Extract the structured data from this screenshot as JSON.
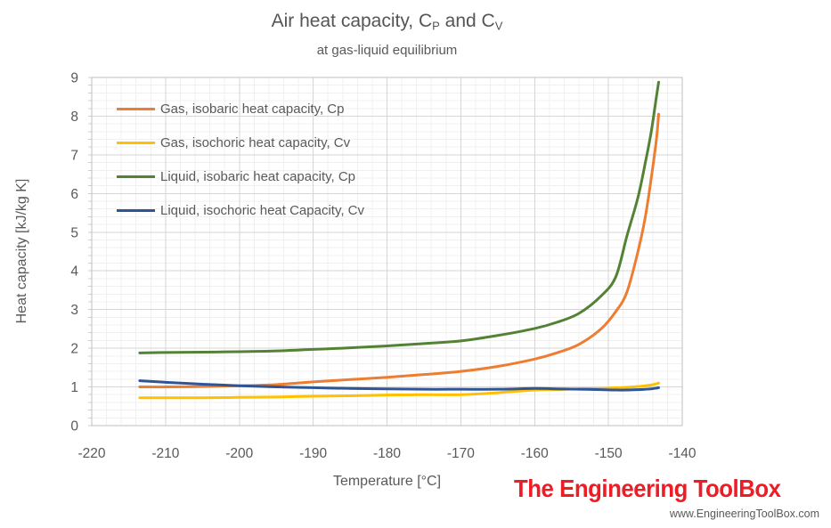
{
  "title": {
    "text1": "Air heat capacity, C",
    "sub1": "P",
    "text2": " and C",
    "sub2": "V"
  },
  "subtitle": "at gas-liquid equilibrium",
  "axes": {
    "x_label": "Temperature [°C]",
    "y_label": "Heat capacity  [kJ/kg K]"
  },
  "branding": {
    "logo_text": "The Engineering ToolBox",
    "logo_color": "#EE1C25",
    "website": "www.EngineeringToolBox.com"
  },
  "chart_data": {
    "type": "line",
    "title": "Air heat capacity, Cp and Cv",
    "subtitle": "at gas-liquid equilibrium",
    "xlabel": "Temperature [°C]",
    "ylabel": "Heat capacity [kJ/kg K]",
    "xlim": [
      -220,
      -140
    ],
    "ylim": [
      0,
      9
    ],
    "x_ticks": [
      -220,
      -210,
      -200,
      -190,
      -180,
      -170,
      -160,
      -150,
      -140
    ],
    "y_ticks": [
      0,
      1,
      2,
      3,
      4,
      5,
      6,
      7,
      8,
      9
    ],
    "grid": {
      "major": true,
      "minor": true,
      "x_major_step": 10,
      "x_minor_step": 2,
      "y_major_step": 1,
      "y_minor_step": 0.2
    },
    "legend_position": "inside-top-left",
    "x": [
      -213.5,
      -210,
      -205,
      -200,
      -195,
      -190,
      -185,
      -180,
      -175,
      -170,
      -165,
      -160,
      -157,
      -154,
      -151,
      -149,
      -147.5,
      -146,
      -145,
      -144.2,
      -143.5,
      -143.2
    ],
    "series": [
      {
        "name": "Gas, isobaric heat capacity, Cp",
        "color": "#ED7D31",
        "values": [
          1.0,
          1.0,
          1.01,
          1.03,
          1.06,
          1.13,
          1.19,
          1.25,
          1.32,
          1.4,
          1.53,
          1.72,
          1.88,
          2.1,
          2.5,
          2.95,
          3.45,
          4.5,
          5.4,
          6.4,
          7.4,
          8.05
        ]
      },
      {
        "name": "Gas, isochoric heat capacity, Cv",
        "color": "#FFC000",
        "values": [
          0.72,
          0.72,
          0.72,
          0.73,
          0.74,
          0.76,
          0.77,
          0.79,
          0.8,
          0.8,
          0.85,
          0.92,
          0.93,
          0.95,
          0.96,
          0.98,
          0.99,
          1.01,
          1.03,
          1.05,
          1.08,
          1.1
        ]
      },
      {
        "name": "Liquid, isobaric heat capacity, Cp",
        "color": "#548235",
        "values": [
          1.88,
          1.89,
          1.9,
          1.91,
          1.93,
          1.97,
          2.01,
          2.06,
          2.12,
          2.19,
          2.33,
          2.51,
          2.67,
          2.9,
          3.35,
          3.85,
          4.9,
          5.9,
          6.8,
          7.6,
          8.5,
          8.88
        ]
      },
      {
        "name": "Liquid, isochoric heat Capacity, Cv",
        "color": "#2F5597",
        "values": [
          1.16,
          1.12,
          1.07,
          1.03,
          1.0,
          0.98,
          0.96,
          0.95,
          0.94,
          0.94,
          0.94,
          0.96,
          0.95,
          0.94,
          0.93,
          0.92,
          0.92,
          0.93,
          0.94,
          0.95,
          0.97,
          0.98
        ]
      }
    ]
  }
}
